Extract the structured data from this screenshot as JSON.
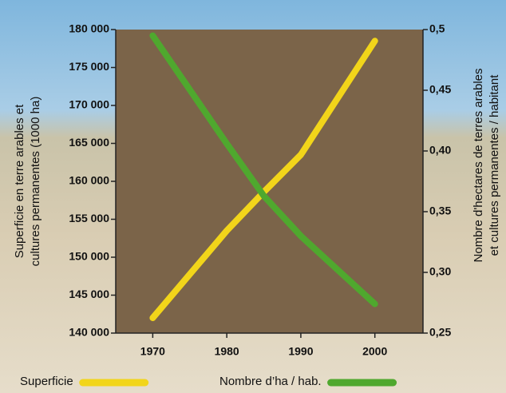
{
  "chart_data": {
    "type": "line",
    "y_label": [
      "Superficie en terre arables et",
      "cultures permanentes (1000 ha)"
    ],
    "y2_label": [
      "Nombre d'hectares de terres arables",
      "et cultures permanentes / habitant"
    ],
    "x": [
      1970,
      1980,
      1985,
      1990,
      2000
    ],
    "xlim": [
      1965,
      2006.5
    ],
    "xticks": [
      1970,
      1980,
      1990,
      2000
    ],
    "ylim": [
      140000,
      180000
    ],
    "yticks": [
      {
        "value": 140000,
        "label": "140 000"
      },
      {
        "value": 145000,
        "label": "145 000"
      },
      {
        "value": 150000,
        "label": "150 000"
      },
      {
        "value": 155000,
        "label": "155 000"
      },
      {
        "value": 160000,
        "label": "160 000"
      },
      {
        "value": 165000,
        "label": "165 000"
      },
      {
        "value": 170000,
        "label": "170 000"
      },
      {
        "value": 175000,
        "label": "175 000"
      },
      {
        "value": 180000,
        "label": "180 000"
      }
    ],
    "y2lim": [
      0.25,
      0.5
    ],
    "y2ticks": [
      {
        "value": 0.25,
        "label": "0,25"
      },
      {
        "value": 0.3,
        "label": "0,30"
      },
      {
        "value": 0.35,
        "label": "0,35"
      },
      {
        "value": 0.4,
        "label": "0,40"
      },
      {
        "value": 0.45,
        "label": "0,45"
      },
      {
        "value": 0.5,
        "label": "0,5"
      }
    ],
    "series": [
      {
        "name": "Superficie",
        "color": "#f2d51a",
        "values": [
          142000,
          153500,
          158600,
          163500,
          178500
        ]
      },
      {
        "name": "Nombre d’ha / hab.",
        "color": "#4fa82e",
        "axis": "y2",
        "values": [
          0.495,
          0.406,
          0.363,
          0.33,
          0.274
        ]
      }
    ]
  }
}
